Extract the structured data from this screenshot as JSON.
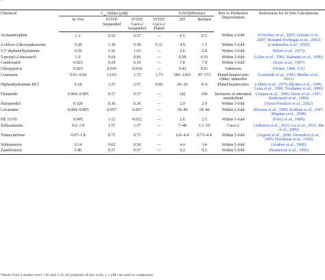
{
  "caption_fragment": "...",
  "header": {
    "chemical": "Chemical",
    "css_group": "Values (μM)",
    "css_prefix": "C",
    "css_sub": "ss",
    "fold_group": "Fold Difference",
    "in_vivo": "In Vivo",
    "ivive_suspended": "IVIVE Suspended",
    "ivive_caco2_suspended": "IVIVE Caco-2 Suspended",
    "ivive_caco2_plated": "IVIVE Caco-2 Plated",
    "ht": "HT",
    "refined": "Refined",
    "key": "Key to Prediction Improvement",
    "references": "References for In Vivo Calculations"
  },
  "rows": [
    {
      "chemical": "Acetaminophen",
      "in_vivo": "1.1ᵃ",
      "susp": "0.52",
      "caco_susp": "0.57",
      "caco_plated": "—",
      "ht": "0.5",
      "refined": "0.5",
      "key": "Within 2-fold",
      "refs": "(Critchley et al., 2005; Gelotte et al., 2007; Rostami-Hodjegan et al., 2002)"
    },
    {
      "chemical": "2-chloro-2'deoxyadenosine",
      "in_vivo": "0.28",
      "susp": "1.36",
      "caco_susp": "0.58",
      "caco_plated": "0.31",
      "ht": "4.9",
      "refined": "1.1",
      "key": "Within 5-fold",
      "refs": "(Lindemalm et al., 2005)"
    },
    {
      "chemical": "5,5'-diphenylhydantoin",
      "in_vivo": "0.59",
      "susp": "1.56",
      "caco_susp": "1.63",
      "caco_plated": "—",
      "ht": "2.6",
      "refined": "2.8",
      "key": "Within 3-fold",
      "refs": "(Brien et al., 1975)"
    },
    {
      "chemical": "5-propyl-2-thiouracil",
      "in_vivo": "1.1ᵃ",
      "susp": "0.64",
      "caco_susp": "0.60",
      "caco_plated": "—",
      "ht": "0.58",
      "refined": "0.55",
      "key": "Within 2-fold",
      "refs": "(Giles et al., 1981; Kabanda et al., 1996)"
    },
    {
      "chemical": "Candoxatril",
      "in_vivo": "0.023",
      "susp": "0.18",
      "caco_susp": "0.16",
      "caco_plated": "—",
      "ht": "7.8",
      "refined": "7.0",
      "key": "Within 3-fold",
      "refs": "(Kaye et al., 1997)"
    },
    {
      "chemical": "Chlorpyrifos",
      "in_vivo": "0.023",
      "susp": "0.010",
      "caco_susp": "0.014",
      "caco_plated": "—",
      "ht": "0.43",
      "refined": "0.61",
      "key": "Unknown",
      "refs": "(Nolan, 1984, 371)"
    },
    {
      "chemical": "Coumarin",
      "in_vivo": "0.01–0.02",
      "susp": "13.63",
      "caco_susp": "1.73",
      "caco_plated": "1.73",
      "ht": "681–1363",
      "refined": "87–173",
      "key": "Plated hepatocytes Other; unknown",
      "refs": "(Lamiable et al., 1993; Mielke et al., 2011)"
    },
    {
      "chemical": "Diphenhydramine HCl",
      "in_vivo": "0.18",
      "susp": "3.57",
      "caco_susp": "3.57",
      "caco_plated": "0.66",
      "ht": "20–29",
      "refined": "4–6",
      "key": "Plated hepatocytes",
      "refs": "(Albert et al., 1975; Blyden et al., 1986; Luna et al., 1989; Toothaker et al., 2000)"
    },
    {
      "chemical": "Flutamide",
      "in_vivo": "0.004–0.005",
      "susp": "0.57",
      "caco_susp": "0.57",
      "caco_plated": "—",
      "ht": "142",
      "refined": "160",
      "key": "Inclusion of intestinal metabolism",
      "refs": "(Anjum et al., 1999; Doser et al., 1997; Radwanski et al., 1989)"
    },
    {
      "chemical": "Haloperidol",
      "in_vivo": "0.126",
      "susp": "0.36",
      "caco_susp": "0.36",
      "caco_plated": "—",
      "ht": "2.9",
      "refined": "2.9",
      "key": "Within 3-fold",
      "refs": "(Yasui-Furukori et al., 2002)"
    },
    {
      "chemical": "Lovastatin",
      "in_vivo": "0.004–0.005",
      "susp": "0.057",
      "caco_susp": "0.057",
      "caco_plated": "—",
      "ht": "18–40",
      "refined": "18–40",
      "key": "Within 2-fold",
      "refs": "(Bramer et al., 1999; Kothare et al., 2007; Mignini et al., 2008)"
    },
    {
      "chemical": "FK 11195",
      "in_vivo": "0.005",
      "susp": "1.12",
      "caco_susp": "0.012",
      "caco_plated": "—",
      "ht": "2.6",
      "refined": "2.5",
      "key": "Within 5-fold",
      "refs": "(Ferry et al., 1989)"
    },
    {
      "chemical": "Sulfasalazine",
      "in_vivo": "0.2–1.8",
      "susp": "1.57",
      "caco_susp": "1.57",
      "caco_plated": "—",
      "ht": "7–48",
      "refined": "1.1–10",
      "key": "Caco-2",
      "refs": "(Adkison et al., 2010; Gu et al., 2011; Ma et al., 2009)"
    },
    {
      "chemical": "Triamcinolone",
      "in_vivo": "0.07–1.8",
      "susp": "0.71",
      "caco_susp": "0.71",
      "caco_plated": "—",
      "ht": "0.8–4.4",
      "refined": "0.75–4.4",
      "key": "Within 5-fold",
      "refs": "(Argenti et al., 2000; Derendorf et al., 1995; Hochhaus et al., 1990)"
    },
    {
      "chemical": "Volinanserin",
      "in_vivo": "0.14",
      "susp": "0.62",
      "caco_susp": "0.56",
      "caco_plated": "—",
      "ht": "4.4",
      "refined": "3.4",
      "key": "Within 5-fold",
      "refs": "(Andree et al., 2000)"
    },
    {
      "chemical": "Zamifenacin",
      "in_vivo": "2.86",
      "susp": "0.57",
      "caco_susp": "0.57",
      "caco_plated": "—",
      "ht": "0.2",
      "refined": "0.2",
      "key": "Within 5-fold",
      "refs": "(Beaumont et al., 1996)"
    }
  ],
  "footnote": "ᵃValues from 2 studies were 1.05 and 1.12; for purposes of this work, 1.1 μM was used as comparator."
}
